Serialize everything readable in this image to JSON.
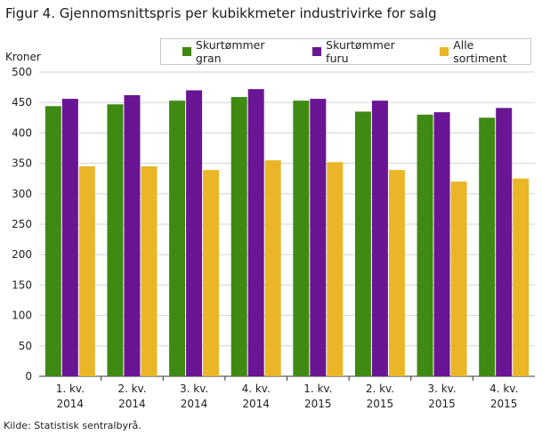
{
  "title": "Figur 4. Gjennomsnittspris per kubikkmeter industrivirke for salg",
  "source": "Kilde: Statistisk sentralbyrå.",
  "chart_data": {
    "type": "bar",
    "ylabel": "Kroner",
    "ylim": [
      0,
      500
    ],
    "yticks": [
      0,
      50,
      100,
      150,
      200,
      250,
      300,
      350,
      400,
      450,
      500
    ],
    "categories": [
      [
        "1. kv.",
        "2014"
      ],
      [
        "2. kv.",
        "2014"
      ],
      [
        "3. kv.",
        "2014"
      ],
      [
        "4. kv.",
        "2014"
      ],
      [
        "1. kv.",
        "2015"
      ],
      [
        "2. kv.",
        "2015"
      ],
      [
        "3. kv.",
        "2015"
      ],
      [
        "4. kv.",
        "2015"
      ]
    ],
    "series": [
      {
        "name": "Skurtømmer gran",
        "color": "#3f8a13",
        "values": [
          444,
          447,
          453,
          459,
          453,
          435,
          430,
          425
        ]
      },
      {
        "name": "Skurtømmer furu",
        "color": "#6a1593",
        "values": [
          456,
          462,
          470,
          472,
          456,
          453,
          434,
          441
        ]
      },
      {
        "name": "Alle sortiment",
        "color": "#eab628",
        "values": [
          345,
          345,
          339,
          355,
          352,
          339,
          320,
          325
        ]
      }
    ],
    "grid": true,
    "legend": "top"
  }
}
